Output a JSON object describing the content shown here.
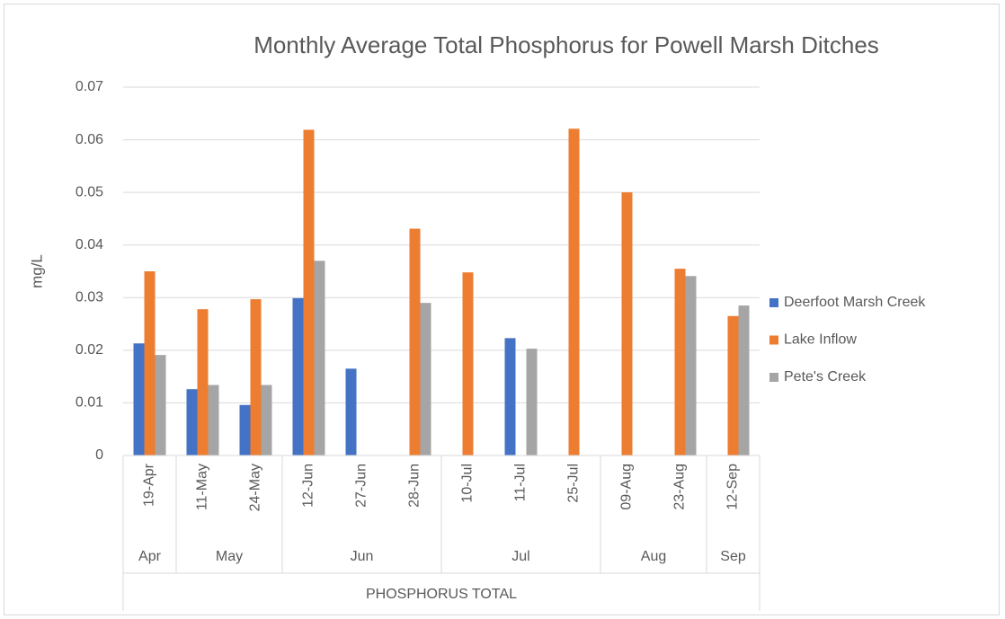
{
  "chart_data": {
    "type": "bar",
    "title": "Monthly Average Total Phosphorus for Powell Marsh Ditches",
    "y_label": "mg/L",
    "x_label": "PHOSPHORUS TOTAL",
    "categories": [
      "19-Apr",
      "11-May",
      "24-May",
      "12-Jun",
      "27-Jun",
      "28-Jun",
      "10-Jul",
      "11-Jul",
      "25-Jul",
      "09-Aug",
      "23-Aug",
      "12-Sep"
    ],
    "groups": [
      {
        "name": "Apr",
        "count": 1
      },
      {
        "name": "May",
        "count": 2
      },
      {
        "name": "Jun",
        "count": 3
      },
      {
        "name": "Jul",
        "count": 3
      },
      {
        "name": "Aug",
        "count": 2
      },
      {
        "name": "Sep",
        "count": 1
      }
    ],
    "series": [
      {
        "name": "Deerfoot Marsh Creek",
        "color": "#4472c4",
        "values": [
          0.0213,
          0.0126,
          0.0096,
          0.0299,
          0.0165,
          null,
          null,
          0.0223,
          null,
          null,
          null,
          null
        ]
      },
      {
        "name": "Lake Inflow",
        "color": "#ed7d31",
        "values": [
          0.035,
          0.0278,
          0.0297,
          0.0619,
          null,
          0.0431,
          0.0348,
          null,
          0.0621,
          0.05,
          0.0355,
          0.0265
        ]
      },
      {
        "name": "Pete's Creek",
        "color": "#a5a5a5",
        "values": [
          0.0191,
          0.0134,
          0.0134,
          0.037,
          null,
          0.029,
          null,
          0.0203,
          null,
          null,
          0.0341,
          0.0285
        ]
      }
    ],
    "ylim": [
      0,
      0.07
    ],
    "yticks": [
      0,
      0.01,
      0.02,
      0.03,
      0.04,
      0.05,
      0.06,
      0.07
    ],
    "grid": true,
    "legend": "right"
  }
}
